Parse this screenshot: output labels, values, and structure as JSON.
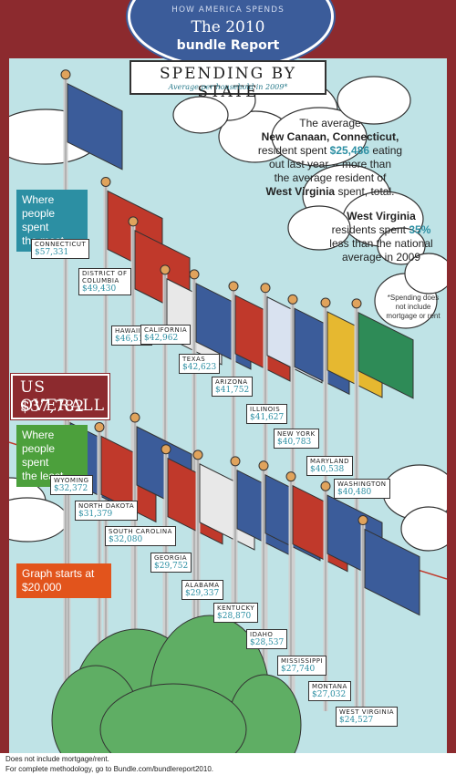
{
  "header": {
    "kicker": "HOW AMERICA SPENDS",
    "year": "The 2010",
    "brand": "bundle Report",
    "title": "SPENDING BY STATE",
    "subtitle": "Average per household in 2009*"
  },
  "facts": {
    "new_canaan_a": "The average",
    "new_canaan_b": "New Canaan, Connecticut,",
    "new_canaan_c1": "resident spent ",
    "new_canaan_amount": "$25,486",
    "new_canaan_c2": " eating",
    "new_canaan_d": "out last year -- more than",
    "new_canaan_e": "the average resident of",
    "new_canaan_f": "West Virginia",
    "new_canaan_g": " spent, total.",
    "wv_a": "West Virginia",
    "wv_b1": "residents spent ",
    "wv_pct": "35%",
    "wv_c": "less than the national",
    "wv_d": "average in 2009",
    "footnote_a": "*Spending does",
    "footnote_b": "not include",
    "footnote_c": "mortgage or rent"
  },
  "callouts": {
    "most_a": "Where",
    "most_b": "people spent",
    "most_c": "the most",
    "least_a": "Where",
    "least_b": "people spent",
    "least_c": "the least",
    "graph_a": "Graph starts at",
    "graph_b": "$20,000",
    "us_label": "US OVERALL",
    "us_value": "$37,782"
  },
  "footer": {
    "line1": "Does not include mortgage/rent.",
    "line2": "For complete methodology, go to Bundle.com/bundlereport2010."
  },
  "colors": {
    "frame": "#8c2a2e",
    "sky": "#bfe3e6",
    "header_blue": "#3b5c9a",
    "teal_callout": "#2c8fa3",
    "green_callout": "#4ca03c",
    "orange_callout": "#e2541c",
    "us_line": "#c0392b",
    "tree": "#5fae64"
  },
  "chart_data": {
    "type": "bar",
    "title": "SPENDING BY STATE",
    "subtitle": "Average per household in 2009*",
    "ylim": [
      20000,
      60000
    ],
    "reference": {
      "name": "US OVERALL",
      "value": 37782
    },
    "categories": [
      "CONNECTICUT",
      "DISTRICT OF COLUMBIA",
      "HAWAII",
      "CALIFORNIA",
      "TEXAS",
      "ARIZONA",
      "ILLINOIS",
      "NEW YORK",
      "MARYLAND",
      "WASHINGTON",
      "WYOMING",
      "NORTH DAKOTA",
      "SOUTH CAROLINA",
      "GEORGIA",
      "ALABAMA",
      "KENTUCKY",
      "IDAHO",
      "MISSISSIPPI",
      "MONTANA",
      "WEST VIRGINIA"
    ],
    "labels": [
      "$57,331",
      "$49,430",
      "$46,518",
      "$42,962",
      "$42,623",
      "$41,752",
      "$41,627",
      "$40,783",
      "$40,538",
      "$40,480",
      "$32,372",
      "$31,379",
      "$32,080",
      "$29,752",
      "$29,337",
      "$28,870",
      "$28,537",
      "$27,740",
      "$27,032",
      "$24,527"
    ],
    "values": [
      57331,
      49430,
      46518,
      42962,
      42623,
      41752,
      41627,
      40783,
      40538,
      40480,
      32372,
      31379,
      32080,
      29752,
      29337,
      28870,
      28537,
      27740,
      27032,
      24527
    ]
  }
}
